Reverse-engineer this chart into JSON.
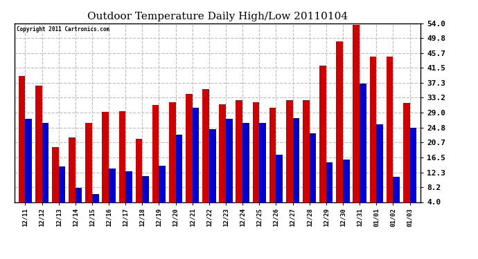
{
  "title": "Outdoor Temperature Daily High/Low 20110104",
  "copyright": "Copyright 2011 Cartronics.com",
  "dates": [
    "12/11",
    "12/12",
    "12/13",
    "12/14",
    "12/15",
    "12/16",
    "12/17",
    "12/18",
    "12/19",
    "12/20",
    "12/21",
    "12/22",
    "12/23",
    "12/24",
    "12/25",
    "12/26",
    "12/27",
    "12/28",
    "12/29",
    "12/30",
    "12/31",
    "01/01",
    "01/02",
    "01/03"
  ],
  "highs": [
    39.2,
    36.5,
    19.4,
    22.0,
    26.1,
    29.3,
    29.5,
    21.7,
    31.1,
    32.0,
    34.2,
    35.6,
    31.3,
    32.5,
    32.0,
    30.4,
    32.5,
    32.5,
    42.1,
    48.9,
    53.6,
    44.6,
    44.6,
    31.8
  ],
  "lows": [
    27.3,
    26.1,
    14.0,
    7.9,
    6.3,
    13.3,
    12.6,
    11.3,
    14.2,
    22.8,
    30.4,
    24.4,
    27.3,
    26.2,
    26.2,
    17.2,
    27.5,
    23.2,
    15.1,
    15.8,
    37.2,
    25.7,
    11.0,
    24.8
  ],
  "high_color": "#cc0000",
  "low_color": "#0000cc",
  "bg_color": "#ffffff",
  "grid_color": "#bbbbbb",
  "yticks": [
    4.0,
    8.2,
    12.3,
    16.5,
    20.7,
    24.8,
    29.0,
    33.2,
    37.3,
    41.5,
    45.7,
    49.8,
    54.0
  ],
  "ylim": [
    4.0,
    54.0
  ],
  "bar_width": 0.4
}
